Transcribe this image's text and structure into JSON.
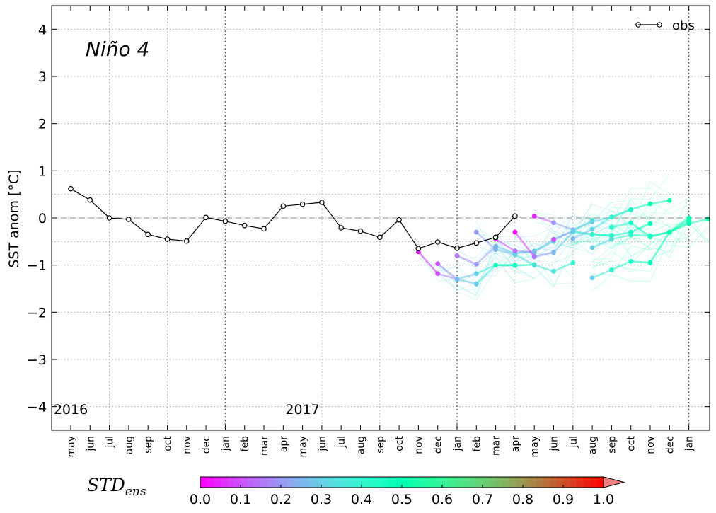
{
  "chart_data": {
    "type": "line",
    "title": "Niño 4",
    "ylabel": "SST anom [°C]",
    "ylim": [
      -4.5,
      4.5
    ],
    "yticks": [
      -4,
      -3,
      -2,
      -1,
      0,
      1,
      2,
      3,
      4
    ],
    "ytick_labels": [
      "−4",
      "−3",
      "−2",
      "−1",
      "0",
      "1",
      "2",
      "3",
      "4"
    ],
    "x_tick_labels": [
      "may",
      "jun",
      "jul",
      "aug",
      "sep",
      "oct",
      "nov",
      "dec",
      "jan",
      "feb",
      "mar",
      "apr",
      "may",
      "jun",
      "jul",
      "aug",
      "sep",
      "oct",
      "nov",
      "dec",
      "jan",
      "feb",
      "mar",
      "apr",
      "may",
      "jun",
      "jul",
      "aug",
      "sep",
      "oct",
      "nov",
      "dec",
      "jan"
    ],
    "year_labels": [
      {
        "text": "2016",
        "index": 0
      },
      {
        "text": "2017",
        "index": 12
      }
    ],
    "year_boundaries": [
      8,
      20,
      32
    ],
    "grid": true,
    "legend": {
      "label": "obs",
      "placement": "top-right"
    },
    "obs": {
      "name": "obs",
      "values": [
        0.62,
        0.38,
        0.0,
        -0.03,
        -0.35,
        -0.45,
        -0.49,
        0.01,
        -0.07,
        -0.16,
        -0.23,
        0.25,
        0.29,
        0.33,
        -0.21,
        -0.28,
        -0.41,
        -0.04,
        -0.65,
        -0.51,
        -0.64,
        -0.53,
        -0.41,
        0.04
      ]
    },
    "forecasts": [
      {
        "start": 18,
        "values": [
          -0.72,
          -1.18,
          -1.3,
          -1.18,
          -1.0,
          -1.0
        ],
        "std": [
          0.05,
          0.1,
          0.25,
          0.3,
          0.45,
          0.5
        ]
      },
      {
        "start": 19,
        "values": [
          -0.97,
          -1.3,
          -1.4,
          -1.0,
          -1.01,
          -0.99
        ],
        "std": [
          0.1,
          0.25,
          0.3,
          0.45,
          0.45,
          0.5
        ]
      },
      {
        "start": 20,
        "values": [
          -0.8,
          -0.98,
          -0.6,
          -0.75,
          -0.7,
          -0.5
        ],
        "std": [
          0.15,
          0.2,
          0.25,
          0.3,
          0.3,
          0.35
        ]
      },
      {
        "start": 21,
        "values": [
          -0.3,
          -0.67,
          -0.78,
          -1.0,
          -1.13,
          -0.95
        ],
        "std": [
          0.2,
          0.25,
          0.3,
          0.35,
          0.35,
          0.4
        ]
      },
      {
        "start": 22,
        "values": [
          -0.45,
          -0.7,
          -0.73,
          -0.45,
          -0.28,
          -0.05
        ],
        "std": [
          0.05,
          0.15,
          0.25,
          0.3,
          0.35,
          0.4
        ]
      },
      {
        "start": 23,
        "values": [
          -0.3,
          -0.82,
          -0.73,
          -0.3,
          -0.35,
          -0.37
        ],
        "std": [
          0.0,
          0.15,
          0.25,
          0.35,
          0.4,
          0.45
        ]
      },
      {
        "start": 24,
        "values": [
          0.04,
          -0.1,
          -0.25,
          -0.08,
          0.02,
          0.17
        ],
        "std": [
          0.05,
          0.2,
          0.25,
          0.3,
          0.35,
          0.4
        ]
      },
      {
        "start": 25,
        "values": [
          -0.46,
          -0.28,
          -0.35,
          -0.38,
          -0.3,
          -0.12
        ],
        "std": [
          0.1,
          0.3,
          0.4,
          0.45,
          0.45,
          0.5
        ]
      },
      {
        "start": 26,
        "values": [
          -0.44,
          -0.24,
          0.02,
          0.18,
          0.3,
          0.37
        ],
        "std": [
          0.25,
          0.3,
          0.4,
          0.45,
          0.5,
          0.55
        ]
      },
      {
        "start": 27,
        "values": [
          -1.27,
          -1.1,
          -0.92,
          -0.95,
          -0.3,
          -0.07
        ],
        "std": [
          0.3,
          0.4,
          0.45,
          0.5,
          0.5,
          0.55
        ]
      },
      {
        "start": 28,
        "values": [
          -0.2,
          -0.1,
          -0.4,
          -0.3,
          -0.12,
          -0.02
        ],
        "std": [
          0.4,
          0.45,
          0.5,
          0.5,
          0.5,
          0.55
        ]
      },
      {
        "start": 27,
        "values": [
          -0.63,
          -0.45,
          -0.36,
          -0.38,
          -0.3,
          0.0
        ],
        "std": [
          0.3,
          0.35,
          0.4,
          0.45,
          0.5,
          0.5
        ]
      }
    ],
    "colorbar": {
      "label": "STD",
      "label_subscript": "ens",
      "min": 0.0,
      "max": 1.0,
      "ticks": [
        "0.0",
        "0.1",
        "0.2",
        "0.3",
        "0.4",
        "0.5",
        "0.6",
        "0.7",
        "0.8",
        "0.9",
        "1.0"
      ],
      "colormap": "rainbow"
    },
    "colors": {
      "obs": "#000000",
      "grid": "#999999",
      "zero_line": "#888888"
    }
  }
}
